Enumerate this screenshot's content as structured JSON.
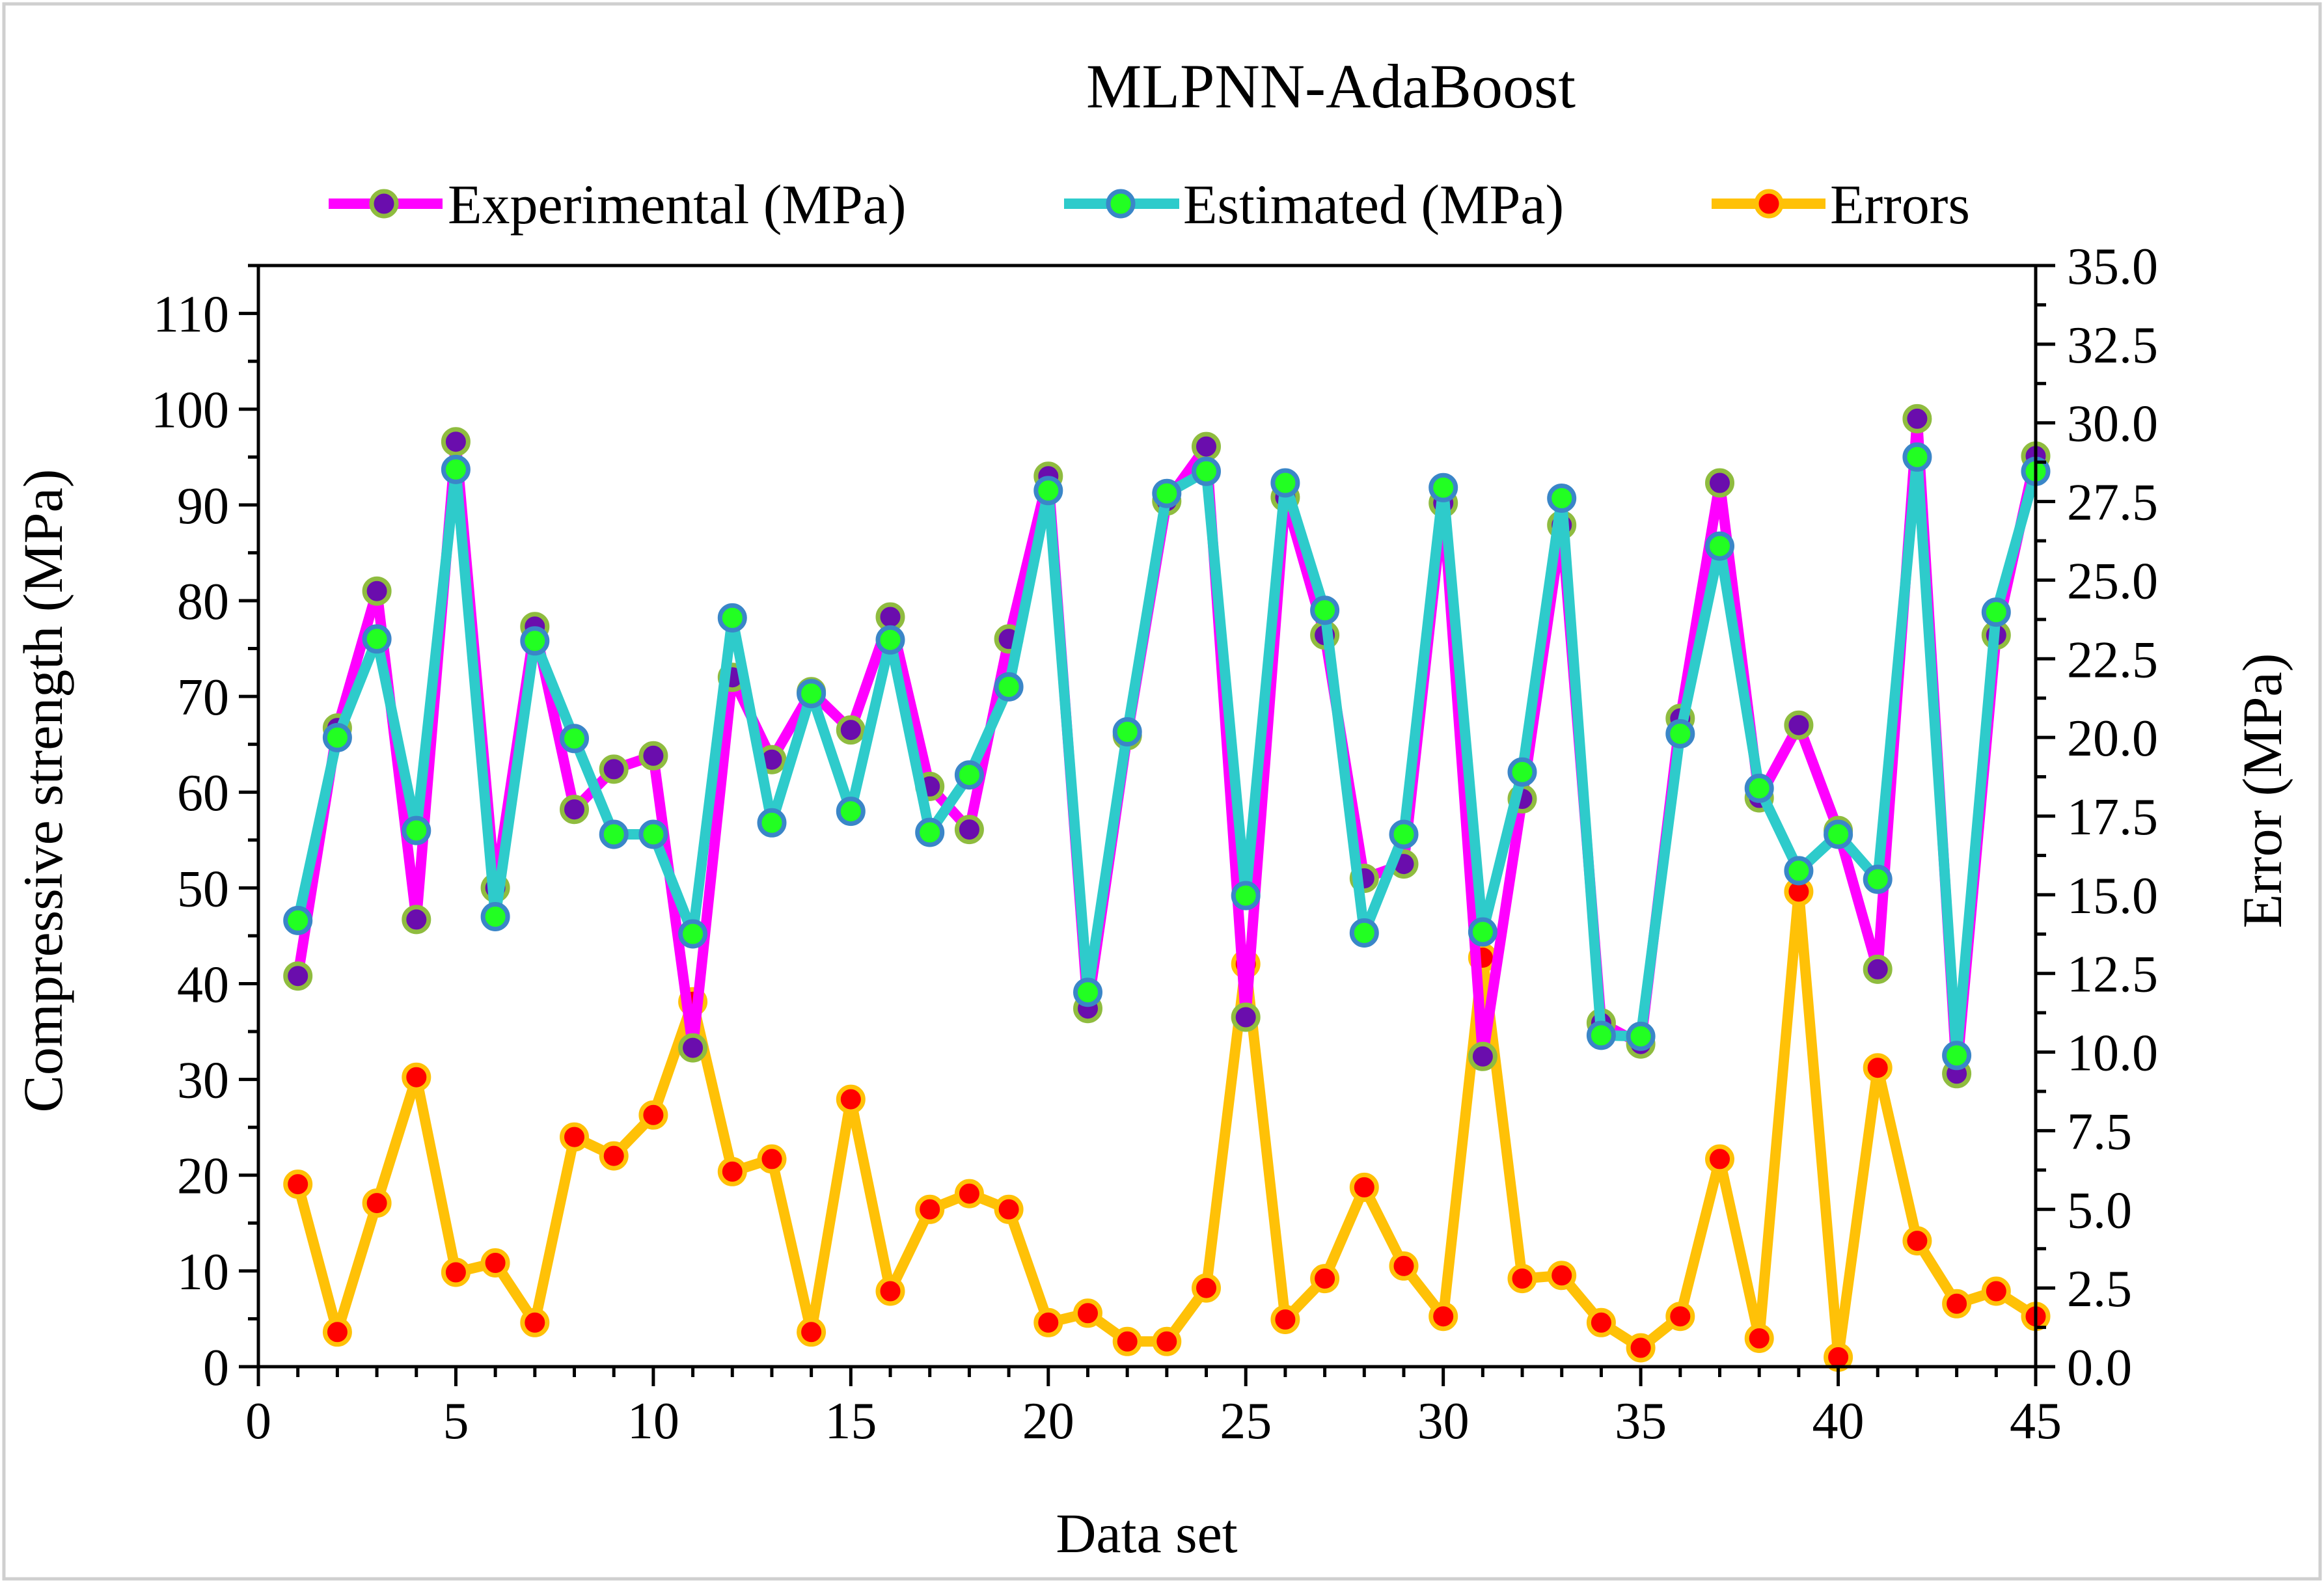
{
  "chart_data": {
    "type": "line",
    "title": "MLPNN-AdaBoost",
    "xlabel": "Data set",
    "ylabel": "Compressive strength (MPa)",
    "y2label": "Error (MPa)",
    "xlim": [
      0,
      45
    ],
    "ylim": [
      0,
      115
    ],
    "y2lim": [
      0,
      35
    ],
    "x_ticks": [
      "0",
      "5",
      "10",
      "15",
      "20",
      "25",
      "30",
      "35",
      "40",
      "45"
    ],
    "y_ticks": [
      "0",
      "10",
      "20",
      "30",
      "40",
      "50",
      "60",
      "70",
      "80",
      "90",
      "100",
      "110"
    ],
    "y2_ticks": [
      "0.0",
      "2.5",
      "5.0",
      "7.5",
      "10.0",
      "12.5",
      "15.0",
      "17.5",
      "20.0",
      "22.5",
      "25.0",
      "27.5",
      "30.0",
      "32.5",
      "35.0"
    ],
    "legend_position": "top",
    "x": [
      1,
      2,
      3,
      4,
      5,
      6,
      7,
      8,
      9,
      10,
      11,
      12,
      13,
      14,
      15,
      16,
      17,
      18,
      19,
      20,
      21,
      22,
      23,
      24,
      25,
      26,
      27,
      28,
      29,
      30,
      31,
      32,
      33,
      34,
      35,
      36,
      37,
      38,
      39,
      40,
      41,
      42,
      43,
      44,
      45
    ],
    "series": [
      {
        "name": "Experimental (MPa)",
        "axis": "left",
        "line_color": "#ff00ff",
        "marker_fill": "#6a0dad",
        "marker_stroke": "#8fbc3f",
        "values": [
          40.8,
          66.7,
          81.0,
          46.7,
          96.6,
          50.0,
          77.3,
          58.2,
          62.4,
          63.8,
          33.3,
          72.0,
          63.4,
          70.5,
          66.5,
          78.3,
          60.6,
          56.1,
          76.0,
          93.0,
          37.4,
          65.9,
          90.4,
          96.1,
          36.5,
          90.8,
          76.4,
          51.0,
          52.5,
          90.2,
          32.4,
          59.3,
          87.9,
          35.9,
          33.7,
          67.7,
          92.3,
          59.4,
          67.0,
          56.0,
          41.5,
          99.0,
          30.6,
          76.4,
          95.1
        ]
      },
      {
        "name": "Estimated (MPa)",
        "axis": "left",
        "line_color": "#2ecbcb",
        "marker_fill": "#22ff22",
        "marker_stroke": "#3a86c8",
        "values": [
          46.6,
          65.7,
          76.0,
          56.0,
          93.7,
          47.0,
          75.8,
          65.6,
          55.6,
          55.6,
          45.2,
          78.2,
          56.8,
          70.3,
          58.0,
          75.9,
          55.8,
          61.8,
          71.0,
          91.5,
          39.1,
          66.3,
          91.2,
          93.5,
          49.2,
          92.3,
          79.0,
          45.3,
          55.6,
          91.8,
          45.4,
          62.1,
          90.7,
          34.6,
          34.5,
          66.1,
          85.7,
          60.4,
          51.8,
          55.6,
          50.9,
          95.0,
          32.5,
          78.8,
          93.5
        ]
      },
      {
        "name": "Errors",
        "axis": "right",
        "line_color": "#ffc107",
        "marker_fill": "#ff0000",
        "marker_stroke": "#ffc107",
        "values": [
          5.8,
          1.1,
          5.2,
          9.2,
          3.0,
          3.3,
          1.4,
          7.3,
          6.7,
          8.0,
          11.6,
          6.2,
          6.6,
          1.1,
          8.5,
          2.4,
          5.0,
          5.5,
          5.0,
          1.4,
          1.7,
          0.8,
          0.8,
          2.5,
          12.8,
          1.5,
          2.8,
          5.7,
          3.2,
          1.6,
          13.0,
          2.8,
          2.9,
          1.4,
          0.6,
          1.6,
          6.6,
          0.9,
          15.1,
          0.3,
          9.5,
          4.0,
          2.0,
          2.4,
          1.6
        ]
      }
    ]
  }
}
